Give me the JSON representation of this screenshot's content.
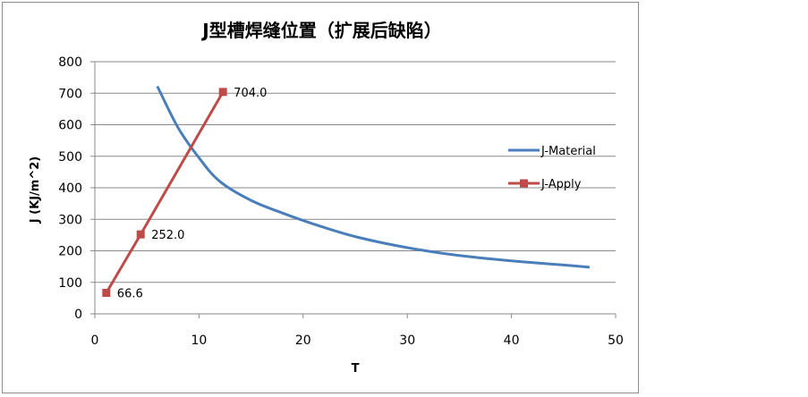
{
  "chart_data": {
    "type": "scatter",
    "title": "J型槽焊缝位置（扩展后缺陷）",
    "xlabel": "T",
    "ylabel": "J (KJ/m^2)",
    "xlim": [
      0,
      50
    ],
    "ylim": [
      0,
      800
    ],
    "xticks": [
      0,
      10,
      20,
      30,
      40,
      50
    ],
    "yticks": [
      0,
      100,
      200,
      300,
      400,
      500,
      600,
      700,
      800
    ],
    "grid": true,
    "legend_position": "right",
    "series": [
      {
        "name": "J-Material",
        "color": "#4a7ebb",
        "marker": "none",
        "smooth": true,
        "x": [
          6,
          8,
          10,
          12,
          15,
          18,
          21,
          25,
          30,
          35,
          40,
          45,
          47.5
        ],
        "y": [
          722,
          590,
          495,
          420,
          360,
          320,
          285,
          245,
          210,
          185,
          168,
          155,
          148
        ]
      },
      {
        "name": "J-Apply",
        "color": "#be4b48",
        "marker": "square",
        "smooth": false,
        "x": [
          1.1,
          4.4,
          12.3
        ],
        "y": [
          66.6,
          252.0,
          704.0
        ],
        "labels": [
          "66.6",
          "252.0",
          "704.0"
        ]
      }
    ]
  }
}
